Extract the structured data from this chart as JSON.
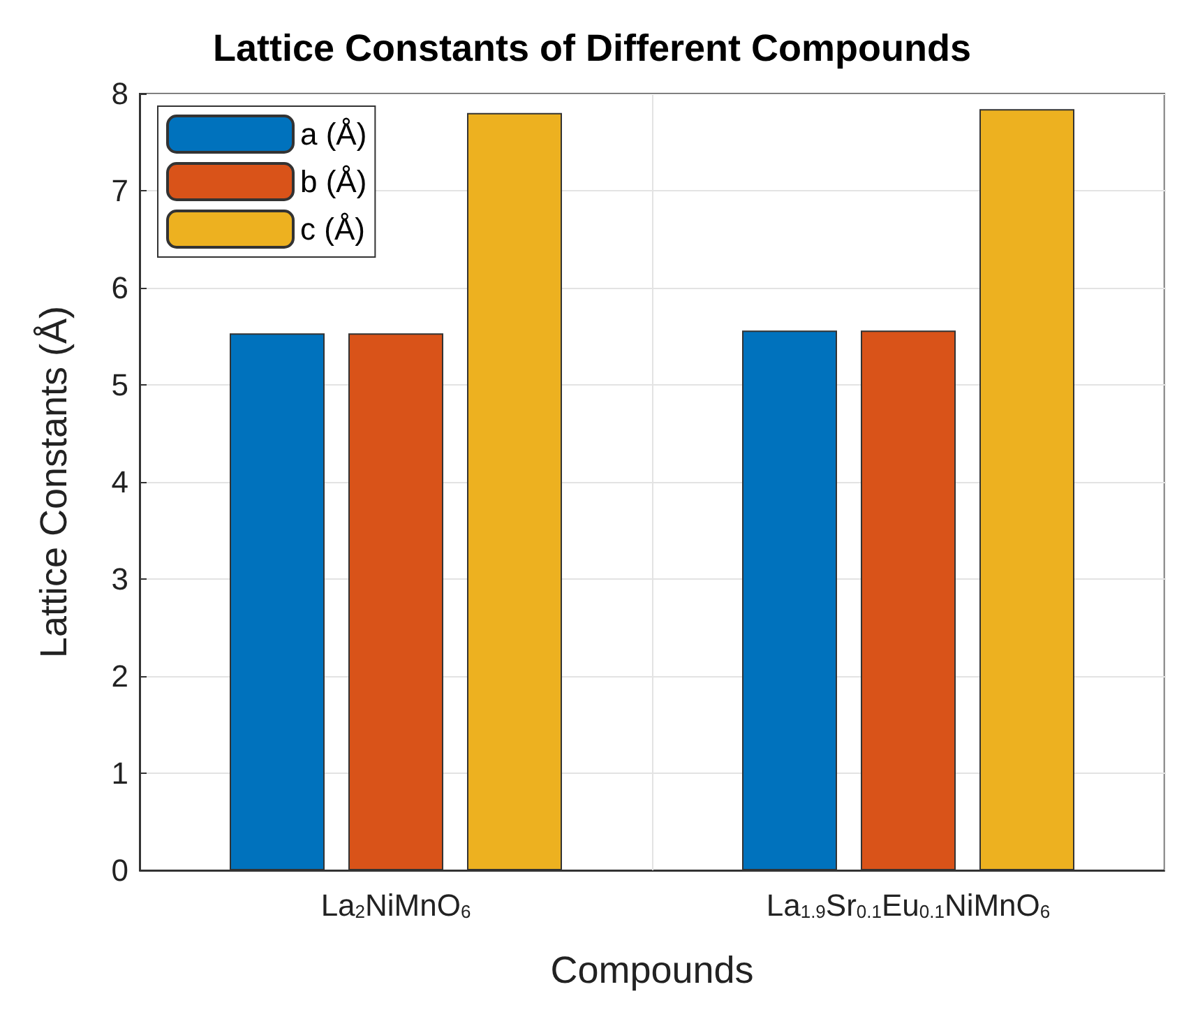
{
  "chart_data": {
    "type": "bar",
    "title": "Lattice Constants of Different Compounds",
    "xlabel": "Compounds",
    "ylabel": "Lattice Constants (Å)",
    "categories": [
      "La$_{2}$NiMnO$_{6}$",
      "La$_{1.9}$Sr$_{0.1}$Eu$_{0.1}$NiMnO$_{6}$"
    ],
    "series": [
      {
        "name": "a (Å)",
        "color": "#0072bd",
        "values": [
          5.53,
          5.56
        ]
      },
      {
        "name": "b (Å)",
        "color": "#d95319",
        "values": [
          5.53,
          5.56
        ]
      },
      {
        "name": "c (Å)",
        "color": "#edb120",
        "values": [
          7.8,
          7.84
        ]
      }
    ],
    "ylim": [
      0,
      8
    ],
    "yticks": [
      0,
      1,
      2,
      3,
      4,
      5,
      6,
      7,
      8
    ],
    "grid": true,
    "legend": "top left"
  }
}
